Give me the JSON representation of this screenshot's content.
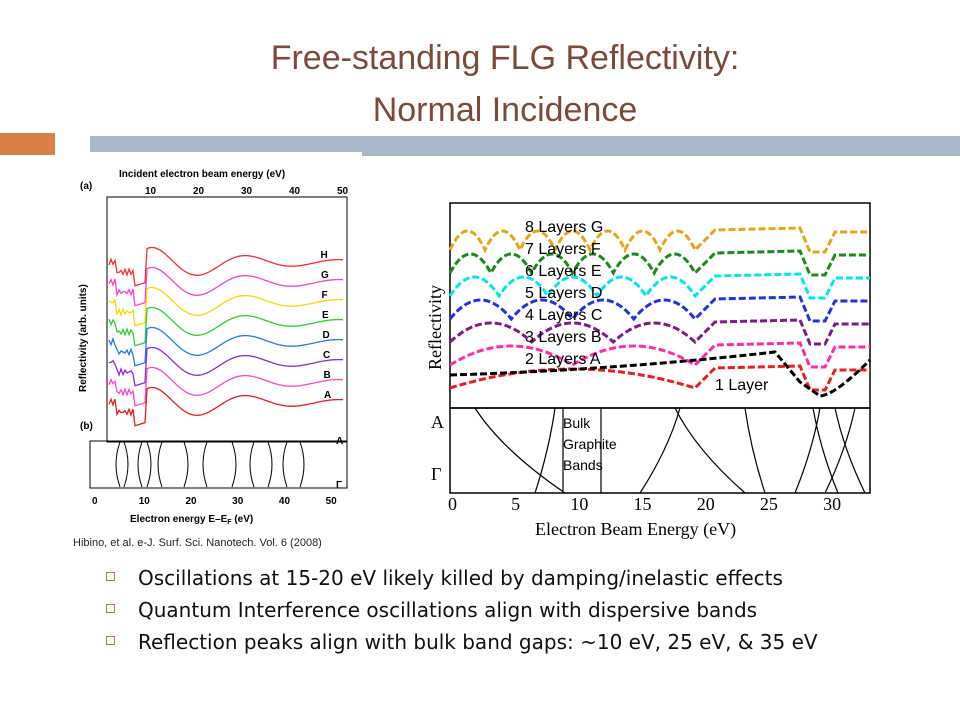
{
  "slide": {
    "title_line1": "Free-standing FLG Reflectivity:",
    "title_line2": "Normal Incidence",
    "citation": "Hibino, et al. e-J. Surf. Sci. Nanotech. Vol. 6 (2008)",
    "bullets": [
      "Oscillations at 15-20 eV likely killed by damping/inelastic effects",
      "Quantum Interference oscillations align with dispersive bands",
      "Reflection peaks align with bulk band gaps: ~10 eV, 25 eV, & 35 eV"
    ],
    "colors": {
      "title": "#7b4a3a",
      "accent_orange": "#d9804a",
      "accent_blue": "#a9b8ca"
    }
  },
  "chart_data": [
    {
      "type": "line",
      "panel_a_label": "(a)",
      "panel_b_label": "(b)",
      "top_xlabel": "Incident electron beam energy (eV)",
      "top_ticks": [
        "10",
        "20",
        "30",
        "40",
        "50"
      ],
      "ylabel": "Reflectivity (arb. units)",
      "xlabel": "Electron energy E–E",
      "xlabel_sub": "F",
      "xlabel_unit": " (eV)",
      "bottom_ticks": [
        "0",
        "10",
        "20",
        "30",
        "40",
        "50"
      ],
      "band_labels": [
        "A",
        "Γ"
      ],
      "series": [
        {
          "name": "H",
          "color": "#ff2a2a"
        },
        {
          "name": "G",
          "color": "#ff3ec8"
        },
        {
          "name": "F",
          "color": "#ffd400"
        },
        {
          "name": "E",
          "color": "#2bd12b"
        },
        {
          "name": "D",
          "color": "#1c7bff"
        },
        {
          "name": "C",
          "color": "#8a2be2"
        },
        {
          "name": "B",
          "color": "#ff44cc"
        },
        {
          "name": "A",
          "color": "#e81c1c"
        }
      ]
    },
    {
      "type": "line",
      "ylabel": "Reflectivity",
      "xlabel": "Electron Beam Energy (eV)",
      "xticks": [
        "0",
        "5",
        "10",
        "15",
        "20",
        "25",
        "30"
      ],
      "xlim": [
        0,
        33
      ],
      "band_panel": {
        "labels": [
          "A",
          "Γ"
        ],
        "text": [
          "Bulk",
          "Graphite",
          "Bands"
        ]
      },
      "series": [
        {
          "name": "8 Layers G",
          "color": "#e8a317"
        },
        {
          "name": "7 Layers F",
          "color": "#1a8a1a"
        },
        {
          "name": "6 Layers E",
          "color": "#00e5ee"
        },
        {
          "name": "5 Layers D",
          "color": "#1f32e8"
        },
        {
          "name": "4 Layers C",
          "color": "#7d1a8c"
        },
        {
          "name": "3 Layers B",
          "color": "#ff2aa8"
        },
        {
          "name": "2 Layers A",
          "color": "#ee1c1c"
        },
        {
          "name": "1 Layer",
          "color": "#000000"
        }
      ]
    }
  ]
}
